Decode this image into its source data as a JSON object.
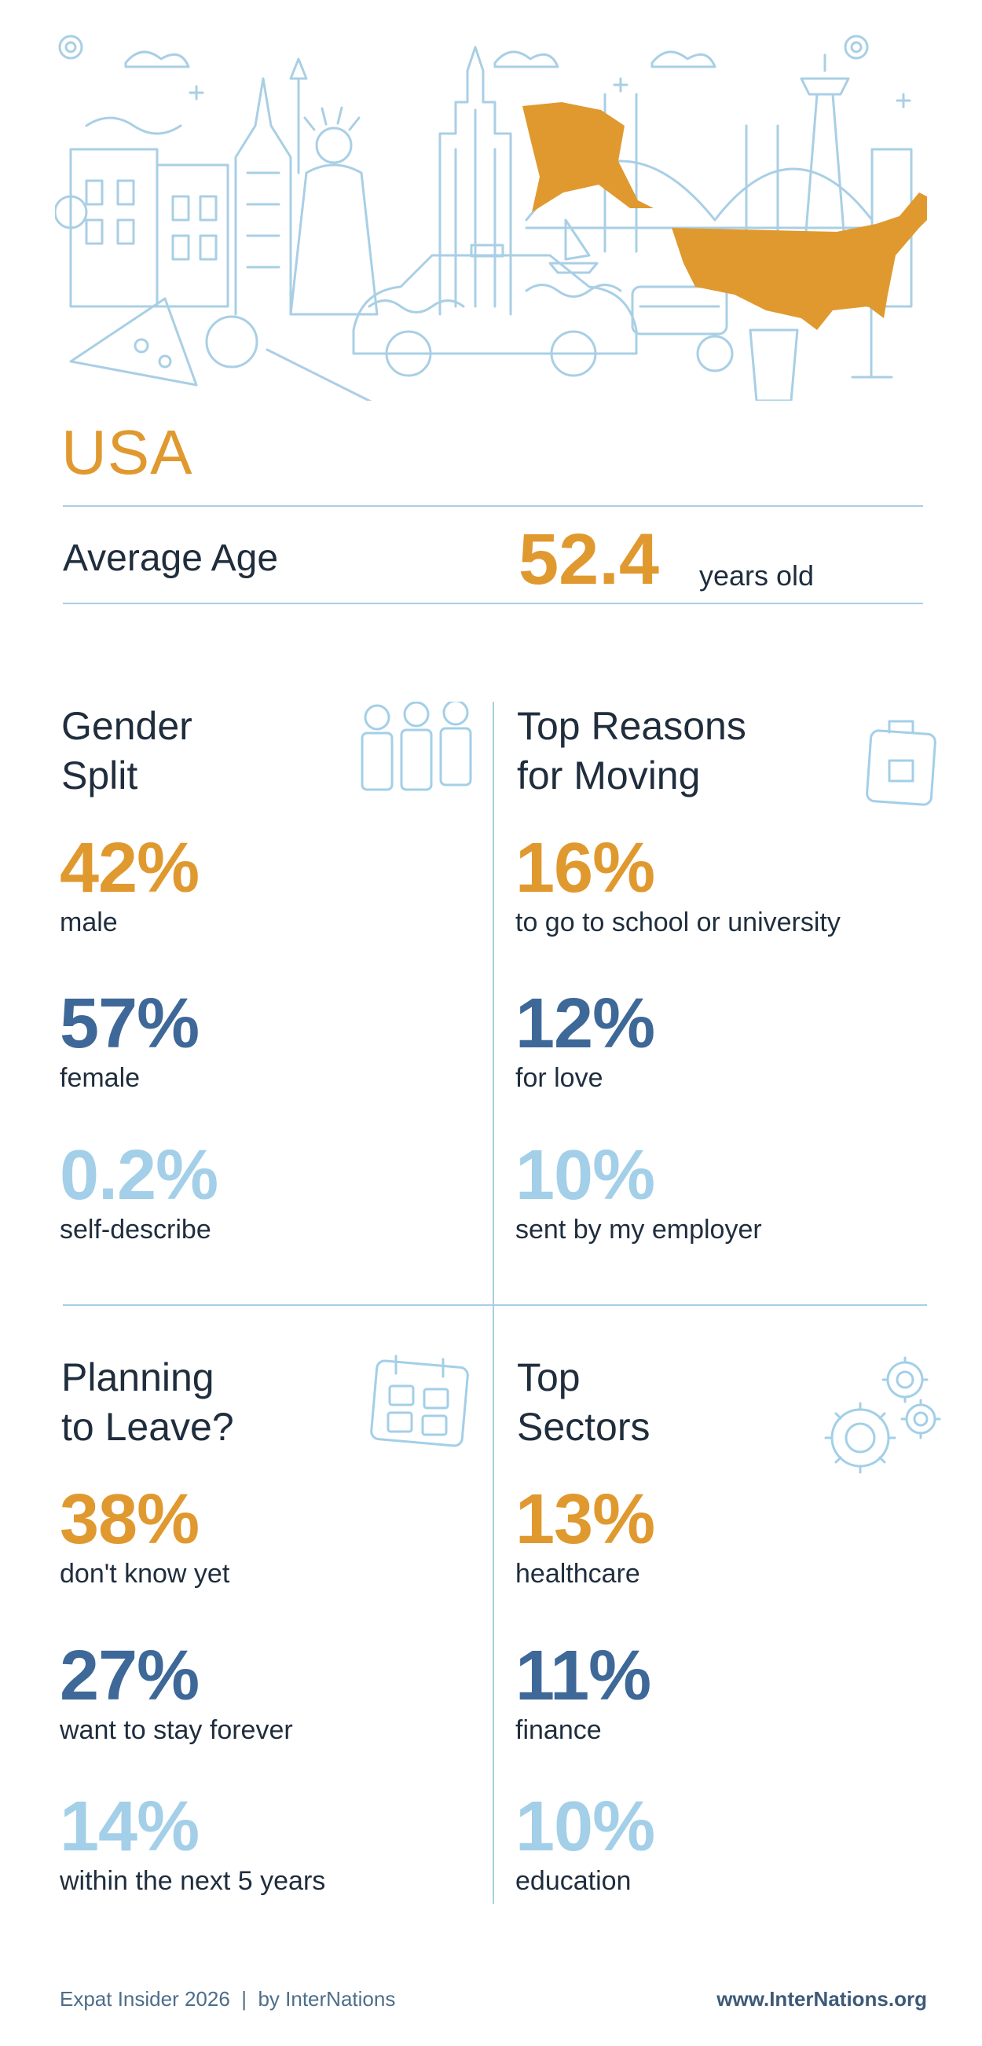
{
  "country": "USA",
  "average_age": {
    "label": "Average Age",
    "value": "52.4",
    "unit": "years old"
  },
  "colors": {
    "accent": "#e0992f",
    "dark_blue": "#3e6898",
    "light_blue": "#a3cfe8",
    "line": "#a9cfe5"
  },
  "sections": {
    "gender": {
      "title_line1": "Gender",
      "title_line2": "Split",
      "icon": "people-icon",
      "stats": [
        {
          "value": "42%",
          "label": "male"
        },
        {
          "value": "57%",
          "label": "female"
        },
        {
          "value": "0.2%",
          "label": "self-describe"
        }
      ]
    },
    "reasons": {
      "title_line1": "Top Reasons",
      "title_line2": "for Moving",
      "icon": "suitcase-icon",
      "stats": [
        {
          "value": "16%",
          "label": "to go to school or university"
        },
        {
          "value": "12%",
          "label": "for love"
        },
        {
          "value": "10%",
          "label": "sent by my employer"
        }
      ]
    },
    "leave": {
      "title_line1": "Planning",
      "title_line2": "to Leave?",
      "icon": "calendar-icon",
      "stats": [
        {
          "value": "38%",
          "label": "don't know yet"
        },
        {
          "value": "27%",
          "label": "want to stay forever"
        },
        {
          "value": "14%",
          "label": "within the next 5 years"
        }
      ]
    },
    "sectors": {
      "title_line1": "Top",
      "title_line2": "Sectors",
      "icon": "gears-icon",
      "stats": [
        {
          "value": "13%",
          "label": "healthcare"
        },
        {
          "value": "11%",
          "label": "finance"
        },
        {
          "value": "10%",
          "label": "education"
        }
      ]
    }
  },
  "footer": {
    "left": "Expat Insider 2026  |  by InterNations",
    "right": "www.InterNations.org"
  }
}
